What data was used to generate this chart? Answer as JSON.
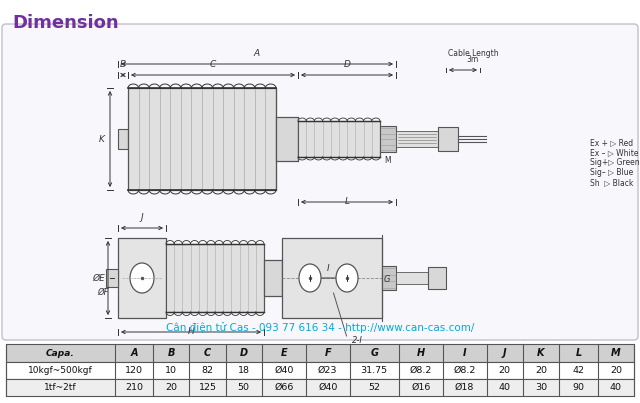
{
  "title": "Dimension",
  "title_color": "#7030A0",
  "background_color": "#ffffff",
  "diagram_bg": "#f8f8fc",
  "diagram_border": "#c0c0cc",
  "line_color": "#555555",
  "dark_line": "#333333",
  "body_color": "#d8d8d8",
  "coil_color": "#e0e0e0",
  "cable_label_line1": "Cable Length",
  "cable_label_line2": "3m",
  "wire_labels": [
    "Ex + ▷ Red",
    "Ex – ▷ White",
    "Sig+▷ Green",
    "Sig– ▷ Blue",
    "Sh  ▷ Black"
  ],
  "bottom_text": "Cân điện tử Cas - 093 77 616 34 - http://www.can-cas.com/",
  "bottom_text_color": "#00aadd",
  "table_headers": [
    "Capa.",
    "A",
    "B",
    "C",
    "D",
    "E",
    "F",
    "G",
    "H",
    "I",
    "J",
    "K",
    "L",
    "M"
  ],
  "table_row1": [
    "10kgf~500kgf",
    "120",
    "10",
    "82",
    "18",
    "Ø40",
    "Ø23",
    "31.75",
    "Ø8.2",
    "Ø8.2",
    "20",
    "20",
    "42",
    "20"
  ],
  "table_row2": [
    "1tf~2tf",
    "210",
    "20",
    "125",
    "50",
    "Ø66",
    "Ø40",
    "52",
    "Ø16",
    "Ø18",
    "40",
    "30",
    "90",
    "40"
  ]
}
